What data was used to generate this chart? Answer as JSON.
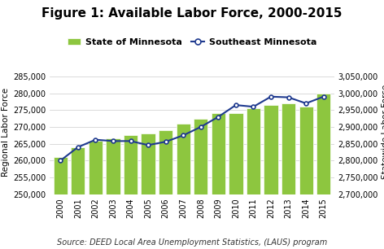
{
  "years": [
    2000,
    2001,
    2002,
    2003,
    2004,
    2005,
    2006,
    2007,
    2008,
    2009,
    2010,
    2011,
    2012,
    2013,
    2014,
    2015
  ],
  "bar_values": [
    261000,
    264000,
    266000,
    266500,
    267500,
    268000,
    269000,
    271000,
    272500,
    274000,
    274000,
    275500,
    276500,
    277000,
    276000,
    280000
  ],
  "line_values": [
    2800000,
    2840000,
    2862000,
    2858000,
    2858000,
    2846000,
    2856000,
    2875000,
    2900000,
    2930000,
    2965000,
    2960000,
    2990000,
    2988000,
    2970000,
    2990000
  ],
  "bar_color": "#8dc63f",
  "bar_edgecolor": "#ffffff",
  "line_color": "#1f3a8f",
  "line_marker": "o",
  "line_marker_facecolor": "#ffffff",
  "line_marker_edgecolor": "#1f3a8f",
  "title": "Figure 1: Available Labor Force, 2000-2015",
  "ylabel_left": "Regional Labor Force",
  "ylabel_right": "Statewide Labor Force",
  "source_text": "Source: DEED Local Area Unemployment Statistics, (LAUS) program",
  "legend_bar_label": "State of Minnesota",
  "legend_line_label": "Southeast Minnesota",
  "ylim_left": [
    250000,
    287000
  ],
  "ylim_right": [
    2700000,
    3070000
  ],
  "yticks_left": [
    250000,
    255000,
    260000,
    265000,
    270000,
    275000,
    280000,
    285000
  ],
  "yticks_right": [
    2700000,
    2750000,
    2800000,
    2850000,
    2900000,
    2950000,
    3000000,
    3050000
  ],
  "grid_color": "#cccccc",
  "background_color": "#ffffff",
  "title_fontsize": 11,
  "axis_label_fontsize": 7.5,
  "tick_fontsize": 7,
  "legend_fontsize": 8,
  "source_fontsize": 7
}
